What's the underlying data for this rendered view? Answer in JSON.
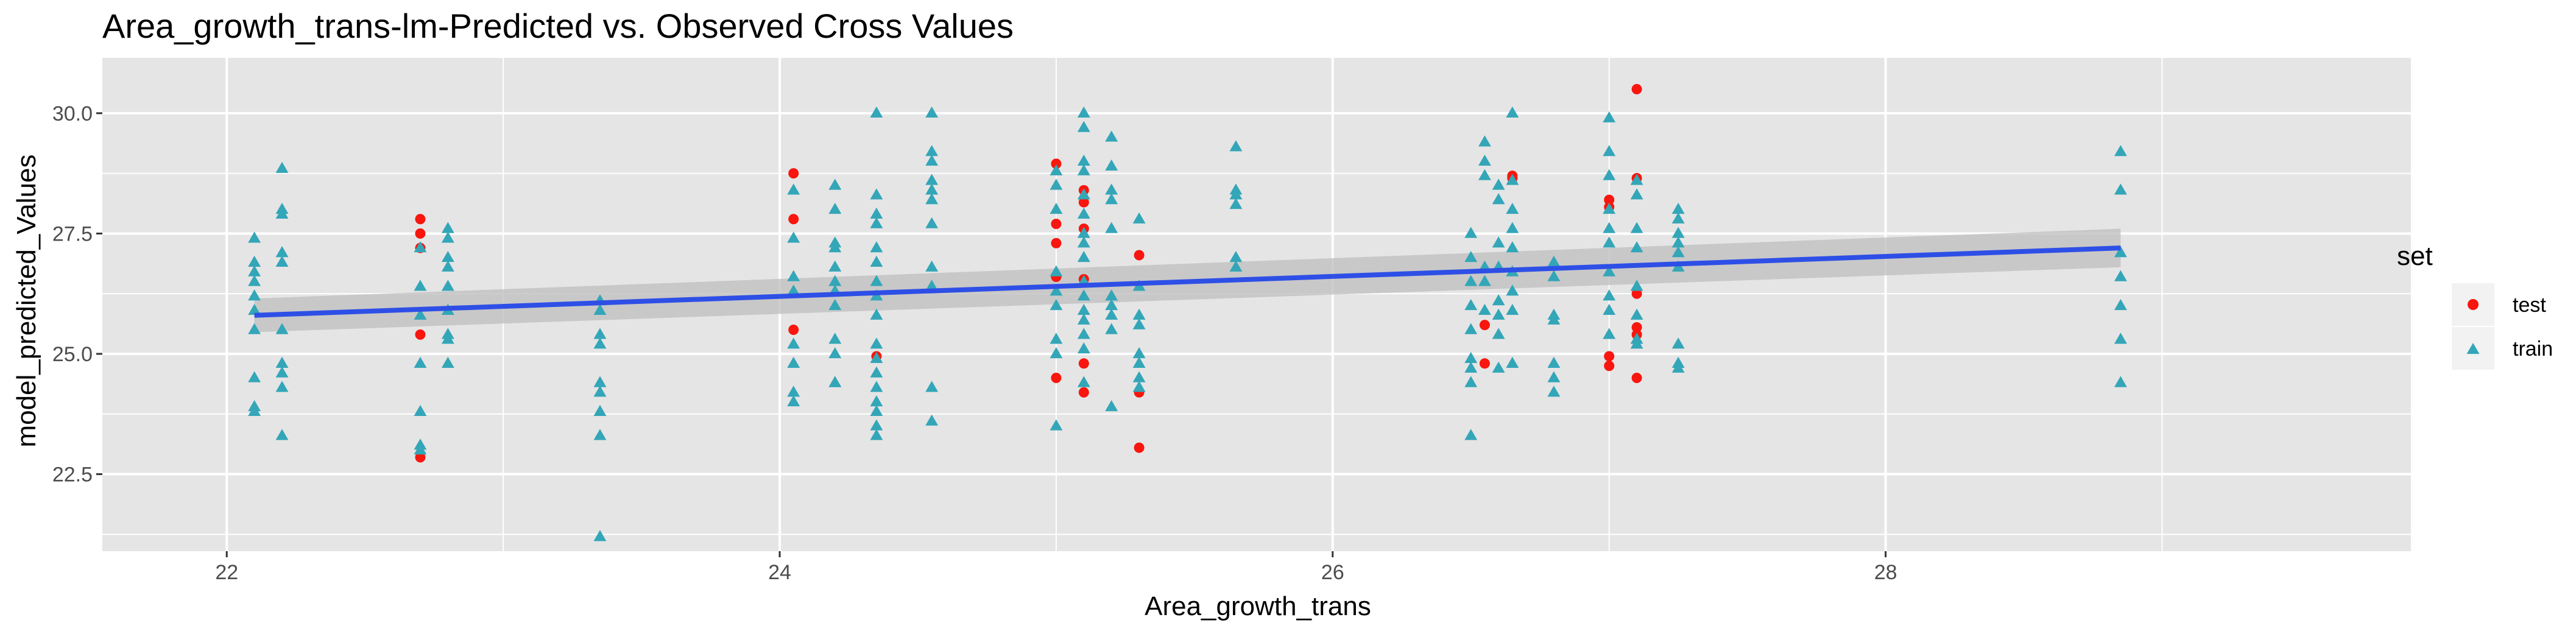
{
  "chart_data": {
    "type": "scatter",
    "title": "Area_growth_trans-lm-Predicted vs. Observed Cross Values",
    "xlabel": "Area_growth_trans",
    "ylabel": "model_predicted_Values",
    "xlim": [
      21.55,
      29.9
    ],
    "ylim": [
      20.9,
      31.15
    ],
    "x_ticks": [
      22,
      24,
      26,
      28
    ],
    "x_tick_labels": [
      "22",
      "24",
      "26",
      "28"
    ],
    "y_ticks": [
      22.5,
      25.0,
      27.5,
      30.0
    ],
    "y_tick_labels": [
      "22.5",
      "25.0",
      "27.5",
      "30.0"
    ],
    "grid": true,
    "legend_position": "right",
    "legend_title": "set",
    "colors": {
      "panel_background": "#e5e5e5",
      "grid": "#ffffff",
      "test": "#f8160e",
      "train": "#33a6b8",
      "fit_line": "#2e4fe6",
      "confidence_band": "#bdbdbd"
    },
    "series": [
      {
        "name": "test",
        "marker": "circle",
        "points": [
          [
            22.7,
            27.8
          ],
          [
            22.7,
            27.5
          ],
          [
            22.7,
            27.2
          ],
          [
            22.7,
            25.4
          ],
          [
            22.7,
            22.85
          ],
          [
            24.05,
            28.75
          ],
          [
            24.05,
            27.8
          ],
          [
            24.05,
            25.5
          ],
          [
            24.35,
            24.95
          ],
          [
            25.0,
            28.95
          ],
          [
            25.0,
            27.7
          ],
          [
            25.0,
            27.3
          ],
          [
            25.0,
            26.6
          ],
          [
            25.0,
            24.5
          ],
          [
            25.1,
            28.4
          ],
          [
            25.1,
            28.15
          ],
          [
            25.1,
            27.6
          ],
          [
            25.1,
            26.55
          ],
          [
            25.1,
            24.8
          ],
          [
            25.1,
            24.2
          ],
          [
            25.3,
            27.05
          ],
          [
            25.3,
            24.2
          ],
          [
            25.3,
            23.05
          ],
          [
            26.55,
            25.6
          ],
          [
            26.55,
            24.8
          ],
          [
            26.65,
            28.7
          ],
          [
            26.65,
            28.65
          ],
          [
            27.0,
            28.2
          ],
          [
            27.0,
            28.05
          ],
          [
            27.0,
            24.95
          ],
          [
            27.0,
            24.75
          ],
          [
            27.1,
            30.5
          ],
          [
            27.1,
            28.65
          ],
          [
            27.1,
            26.25
          ],
          [
            27.1,
            25.55
          ],
          [
            27.1,
            25.4
          ],
          [
            27.1,
            24.5
          ]
        ]
      },
      {
        "name": "train",
        "marker": "triangle",
        "points": [
          [
            22.1,
            27.4
          ],
          [
            22.1,
            26.9
          ],
          [
            22.1,
            26.7
          ],
          [
            22.1,
            26.5
          ],
          [
            22.1,
            26.2
          ],
          [
            22.1,
            25.9
          ],
          [
            22.1,
            25.5
          ],
          [
            22.1,
            24.5
          ],
          [
            22.1,
            23.9
          ],
          [
            22.1,
            23.8
          ],
          [
            22.2,
            28.85
          ],
          [
            22.2,
            28.0
          ],
          [
            22.2,
            27.9
          ],
          [
            22.2,
            27.1
          ],
          [
            22.2,
            26.9
          ],
          [
            22.2,
            25.5
          ],
          [
            22.2,
            24.8
          ],
          [
            22.2,
            24.6
          ],
          [
            22.2,
            24.3
          ],
          [
            22.2,
            23.3
          ],
          [
            22.7,
            27.2
          ],
          [
            22.7,
            26.4
          ],
          [
            22.7,
            25.8
          ],
          [
            22.7,
            24.8
          ],
          [
            22.7,
            23.8
          ],
          [
            22.7,
            23.1
          ],
          [
            22.7,
            23.0
          ],
          [
            22.8,
            27.6
          ],
          [
            22.8,
            27.4
          ],
          [
            22.8,
            27.0
          ],
          [
            22.8,
            26.8
          ],
          [
            22.8,
            26.4
          ],
          [
            22.8,
            25.9
          ],
          [
            22.8,
            25.4
          ],
          [
            22.8,
            25.3
          ],
          [
            22.8,
            24.8
          ],
          [
            23.35,
            26.1
          ],
          [
            23.35,
            25.9
          ],
          [
            23.35,
            25.4
          ],
          [
            23.35,
            25.2
          ],
          [
            23.35,
            24.4
          ],
          [
            23.35,
            24.2
          ],
          [
            23.35,
            23.8
          ],
          [
            23.35,
            23.3
          ],
          [
            23.35,
            21.2
          ],
          [
            24.05,
            28.4
          ],
          [
            24.05,
            27.4
          ],
          [
            24.05,
            26.6
          ],
          [
            24.05,
            26.3
          ],
          [
            24.05,
            25.2
          ],
          [
            24.05,
            24.8
          ],
          [
            24.05,
            24.2
          ],
          [
            24.05,
            24.0
          ],
          [
            24.2,
            28.5
          ],
          [
            24.2,
            28.0
          ],
          [
            24.2,
            27.3
          ],
          [
            24.2,
            27.2
          ],
          [
            24.2,
            26.8
          ],
          [
            24.2,
            26.5
          ],
          [
            24.2,
            26.3
          ],
          [
            24.2,
            26.0
          ],
          [
            24.2,
            25.3
          ],
          [
            24.2,
            25.0
          ],
          [
            24.2,
            24.4
          ],
          [
            24.2,
            24.4
          ],
          [
            24.35,
            30.0
          ],
          [
            24.35,
            28.3
          ],
          [
            24.35,
            27.9
          ],
          [
            24.35,
            27.7
          ],
          [
            24.35,
            27.2
          ],
          [
            24.35,
            26.9
          ],
          [
            24.35,
            26.5
          ],
          [
            24.35,
            26.2
          ],
          [
            24.35,
            25.8
          ],
          [
            24.35,
            25.2
          ],
          [
            24.35,
            24.9
          ],
          [
            24.35,
            24.6
          ],
          [
            24.35,
            24.3
          ],
          [
            24.35,
            24.0
          ],
          [
            24.35,
            23.8
          ],
          [
            24.35,
            23.5
          ],
          [
            24.35,
            23.3
          ],
          [
            24.55,
            30.0
          ],
          [
            24.55,
            29.2
          ],
          [
            24.55,
            29.0
          ],
          [
            24.55,
            28.6
          ],
          [
            24.55,
            28.4
          ],
          [
            24.55,
            28.2
          ],
          [
            24.55,
            27.7
          ],
          [
            24.55,
            26.8
          ],
          [
            24.55,
            26.4
          ],
          [
            24.55,
            24.3
          ],
          [
            24.55,
            23.6
          ],
          [
            25.0,
            28.8
          ],
          [
            25.0,
            28.5
          ],
          [
            25.0,
            28.0
          ],
          [
            25.0,
            26.7
          ],
          [
            25.0,
            26.3
          ],
          [
            25.0,
            26.0
          ],
          [
            25.0,
            25.3
          ],
          [
            25.0,
            25.0
          ],
          [
            25.0,
            23.5
          ],
          [
            25.1,
            30.0
          ],
          [
            25.1,
            29.7
          ],
          [
            25.1,
            29.0
          ],
          [
            25.1,
            28.8
          ],
          [
            25.1,
            28.3
          ],
          [
            25.1,
            27.9
          ],
          [
            25.1,
            27.5
          ],
          [
            25.1,
            27.3
          ],
          [
            25.1,
            27.0
          ],
          [
            25.1,
            26.5
          ],
          [
            25.1,
            26.2
          ],
          [
            25.1,
            25.9
          ],
          [
            25.1,
            25.7
          ],
          [
            25.1,
            25.4
          ],
          [
            25.1,
            25.1
          ],
          [
            25.1,
            24.4
          ],
          [
            25.2,
            29.5
          ],
          [
            25.2,
            28.9
          ],
          [
            25.2,
            28.4
          ],
          [
            25.2,
            28.2
          ],
          [
            25.2,
            27.6
          ],
          [
            25.2,
            26.2
          ],
          [
            25.2,
            26.0
          ],
          [
            25.2,
            25.8
          ],
          [
            25.2,
            25.5
          ],
          [
            25.2,
            23.9
          ],
          [
            25.3,
            27.8
          ],
          [
            25.3,
            26.4
          ],
          [
            25.3,
            25.8
          ],
          [
            25.3,
            25.6
          ],
          [
            25.3,
            25.0
          ],
          [
            25.3,
            24.8
          ],
          [
            25.3,
            24.5
          ],
          [
            25.3,
            24.3
          ],
          [
            25.65,
            29.3
          ],
          [
            25.65,
            28.4
          ],
          [
            25.65,
            28.3
          ],
          [
            25.65,
            28.1
          ],
          [
            25.65,
            27.0
          ],
          [
            25.65,
            26.8
          ],
          [
            26.5,
            27.5
          ],
          [
            26.5,
            27.0
          ],
          [
            26.5,
            26.5
          ],
          [
            26.5,
            26.0
          ],
          [
            26.5,
            25.5
          ],
          [
            26.5,
            24.9
          ],
          [
            26.5,
            24.7
          ],
          [
            26.5,
            24.4
          ],
          [
            26.5,
            23.3
          ],
          [
            26.55,
            29.4
          ],
          [
            26.55,
            29.0
          ],
          [
            26.55,
            28.7
          ],
          [
            26.55,
            26.8
          ],
          [
            26.55,
            26.5
          ],
          [
            26.55,
            25.9
          ],
          [
            26.6,
            28.5
          ],
          [
            26.6,
            28.2
          ],
          [
            26.6,
            27.3
          ],
          [
            26.6,
            26.8
          ],
          [
            26.6,
            26.1
          ],
          [
            26.6,
            25.8
          ],
          [
            26.6,
            25.4
          ],
          [
            26.6,
            24.7
          ],
          [
            26.65,
            30.0
          ],
          [
            26.65,
            28.6
          ],
          [
            26.65,
            28.0
          ],
          [
            26.65,
            27.6
          ],
          [
            26.65,
            27.2
          ],
          [
            26.65,
            26.7
          ],
          [
            26.65,
            26.3
          ],
          [
            26.65,
            25.9
          ],
          [
            26.65,
            24.8
          ],
          [
            26.8,
            26.9
          ],
          [
            26.8,
            26.6
          ],
          [
            26.8,
            25.8
          ],
          [
            26.8,
            25.7
          ],
          [
            26.8,
            24.8
          ],
          [
            26.8,
            24.5
          ],
          [
            26.8,
            24.2
          ],
          [
            27.0,
            29.9
          ],
          [
            27.0,
            29.2
          ],
          [
            27.0,
            28.7
          ],
          [
            27.0,
            28.0
          ],
          [
            27.0,
            27.6
          ],
          [
            27.0,
            27.3
          ],
          [
            27.0,
            26.7
          ],
          [
            27.0,
            26.2
          ],
          [
            27.0,
            25.9
          ],
          [
            27.0,
            25.4
          ],
          [
            27.1,
            28.6
          ],
          [
            27.1,
            28.3
          ],
          [
            27.1,
            27.6
          ],
          [
            27.1,
            27.2
          ],
          [
            27.1,
            26.4
          ],
          [
            27.1,
            25.8
          ],
          [
            27.1,
            25.3
          ],
          [
            27.1,
            25.2
          ],
          [
            27.25,
            28.0
          ],
          [
            27.25,
            27.8
          ],
          [
            27.25,
            27.5
          ],
          [
            27.25,
            27.3
          ],
          [
            27.25,
            27.1
          ],
          [
            27.25,
            26.8
          ],
          [
            27.25,
            25.2
          ],
          [
            27.25,
            24.8
          ],
          [
            27.25,
            24.7
          ],
          [
            28.85,
            29.2
          ],
          [
            28.85,
            28.4
          ],
          [
            28.85,
            27.1
          ],
          [
            28.85,
            26.6
          ],
          [
            28.85,
            26.0
          ],
          [
            28.85,
            25.3
          ],
          [
            28.85,
            24.4
          ]
        ]
      }
    ],
    "fit": {
      "label": "lm",
      "x": [
        22.1,
        28.85
      ],
      "y": [
        25.8,
        27.2
      ],
      "band_lower": [
        25.45,
        26.8
      ],
      "band_upper": [
        26.15,
        27.6
      ]
    }
  }
}
